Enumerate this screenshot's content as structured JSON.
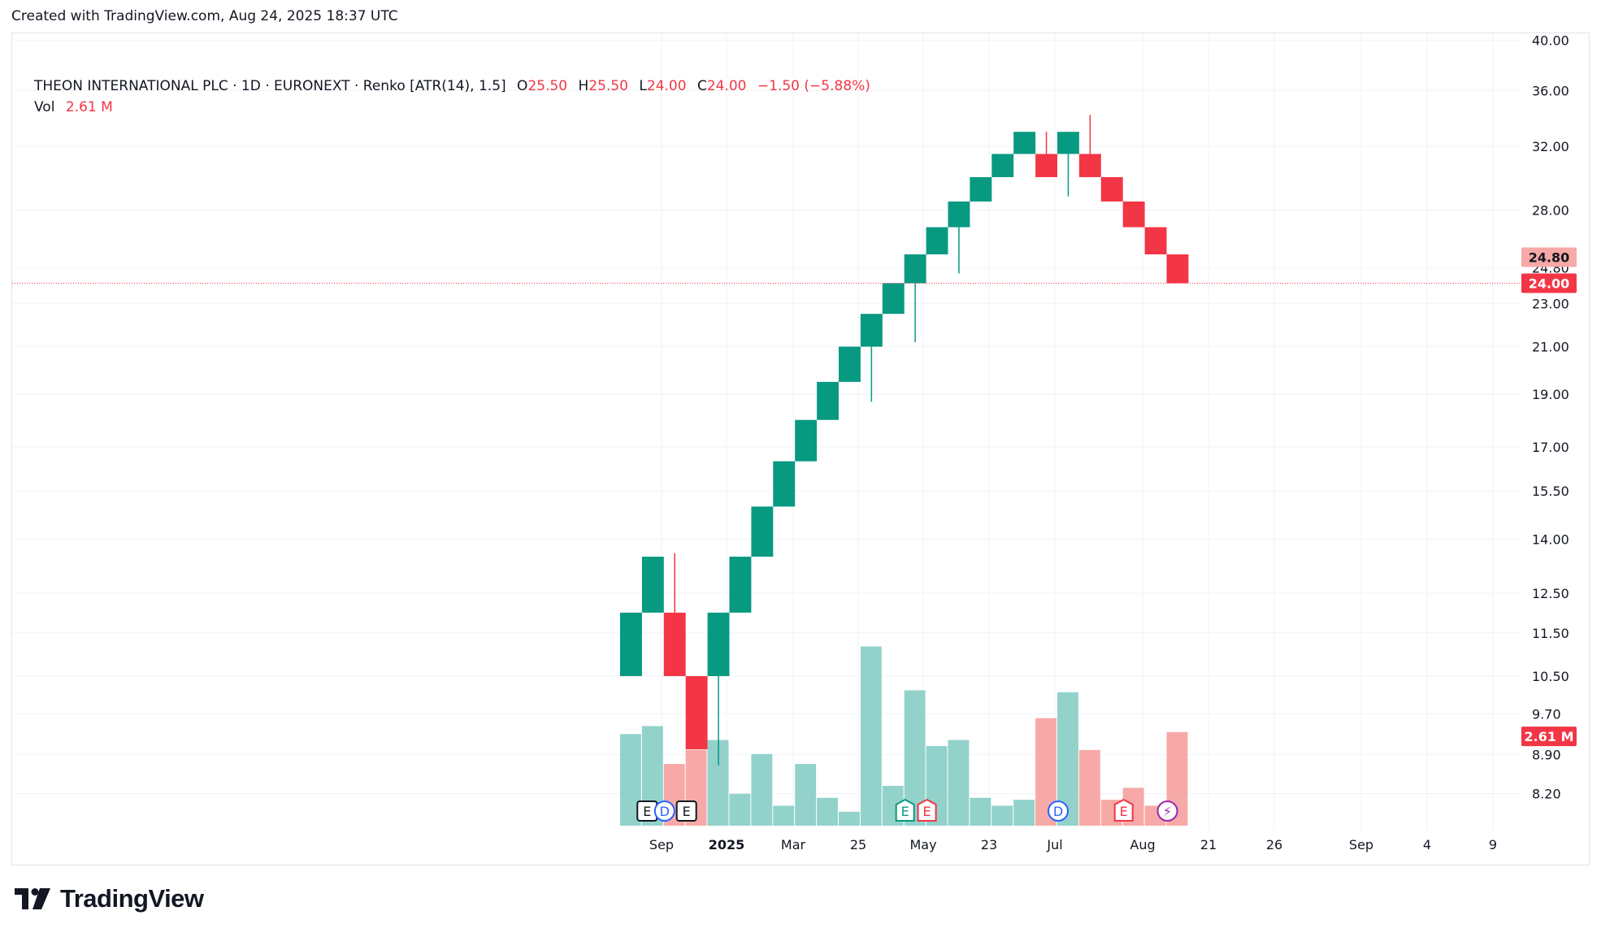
{
  "header": {
    "created_text": "Created with TradingView.com, Aug 24, 2025 18:37 UTC"
  },
  "legend": {
    "symbol_line": "THEON INTERNATIONAL PLC · 1D · EURONEXT · Renko [ATR(14), 1.5]",
    "open_label": "O",
    "open_value": "25.50",
    "high_label": "H",
    "high_value": "25.50",
    "low_label": "L",
    "low_value": "24.00",
    "close_label": "C",
    "close_value": "24.00",
    "change": "−1.50 (−5.88%)",
    "vol_label": "Vol",
    "vol_value": "2.61 M"
  },
  "footer": {
    "brand": "TradingView"
  },
  "colors": {
    "up": "#089981",
    "down": "#f23645",
    "vol_up": "#92d2cb",
    "vol_down": "#f7a9a7",
    "grid": "#f0f3fa",
    "event_E": "#131722",
    "event_D": "#2962ff",
    "event_split": "#9c27b0"
  },
  "chart_data": {
    "type": "renko",
    "price_axis": {
      "scale": "log",
      "ticks": [
        "40.00",
        "36.00",
        "32.00",
        "28.00",
        "24.80",
        "23.00",
        "21.00",
        "19.00",
        "17.00",
        "15.50",
        "14.00",
        "12.50",
        "11.50",
        "10.50",
        "9.70",
        "8.90",
        "8.20"
      ],
      "range": [
        7.6,
        40.6
      ]
    },
    "time_axis": {
      "ticks": [
        "Sep",
        "2025",
        "Mar",
        "25",
        "May",
        "23",
        "Jul",
        "Aug",
        "21",
        "26",
        "Sep",
        "4",
        "9"
      ],
      "bold": [
        "2025"
      ]
    },
    "bricks": [
      {
        "open": 10.5,
        "close": 12.0,
        "dir": "up"
      },
      {
        "open": 12.0,
        "close": 13.5,
        "dir": "up"
      },
      {
        "open": 12.0,
        "close": 10.5,
        "dir": "down",
        "wick_high": 13.6
      },
      {
        "open": 10.5,
        "close": 9.0,
        "dir": "down"
      },
      {
        "open": 10.5,
        "close": 12.0,
        "dir": "up",
        "wick_low": 8.7
      },
      {
        "open": 12.0,
        "close": 13.5,
        "dir": "up"
      },
      {
        "open": 13.5,
        "close": 15.0,
        "dir": "up"
      },
      {
        "open": 15.0,
        "close": 16.5,
        "dir": "up"
      },
      {
        "open": 16.5,
        "close": 18.0,
        "dir": "up"
      },
      {
        "open": 18.0,
        "close": 19.5,
        "dir": "up"
      },
      {
        "open": 19.5,
        "close": 21.0,
        "dir": "up"
      },
      {
        "open": 21.0,
        "close": 22.5,
        "dir": "up",
        "wick_low": 18.7
      },
      {
        "open": 22.5,
        "close": 24.0,
        "dir": "up"
      },
      {
        "open": 24.0,
        "close": 25.5,
        "dir": "up",
        "wick_low": 21.2
      },
      {
        "open": 25.5,
        "close": 27.0,
        "dir": "up"
      },
      {
        "open": 27.0,
        "close": 28.5,
        "dir": "up",
        "wick_low": 24.5
      },
      {
        "open": 28.5,
        "close": 30.0,
        "dir": "up"
      },
      {
        "open": 30.0,
        "close": 31.5,
        "dir": "up"
      },
      {
        "open": 31.5,
        "close": 33.0,
        "dir": "up"
      },
      {
        "open": 31.5,
        "close": 30.0,
        "dir": "down",
        "wick_high": 33.0
      },
      {
        "open": 31.5,
        "close": 33.0,
        "dir": "up",
        "wick_low": 28.8
      },
      {
        "open": 31.5,
        "close": 30.0,
        "dir": "down",
        "wick_high": 34.2
      },
      {
        "open": 30.0,
        "close": 28.5,
        "dir": "down"
      },
      {
        "open": 28.5,
        "close": 27.0,
        "dir": "down"
      },
      {
        "open": 27.0,
        "close": 25.5,
        "dir": "down"
      },
      {
        "open": 25.5,
        "close": 24.0,
        "dir": "down"
      }
    ],
    "volume_relative": [
      0.46,
      0.5,
      0.31,
      0.38,
      0.43,
      0.16,
      0.36,
      0.1,
      0.31,
      0.14,
      0.07,
      0.9,
      0.2,
      0.68,
      0.4,
      0.43,
      0.14,
      0.1,
      0.13,
      0.54,
      0.67,
      0.38,
      0.13,
      0.19,
      0.1,
      0.47
    ],
    "volume_dir": [
      "up",
      "up",
      "down",
      "down",
      "up",
      "up",
      "up",
      "up",
      "up",
      "up",
      "up",
      "up",
      "up",
      "up",
      "up",
      "up",
      "up",
      "up",
      "up",
      "down",
      "up",
      "down",
      "down",
      "down",
      "down",
      "down"
    ],
    "events": [
      {
        "brick": 1,
        "letter": "E",
        "kind": "earnings-neutral",
        "offset": 0.2
      },
      {
        "brick": 2,
        "letter": "D",
        "kind": "dividend"
      },
      {
        "brick": 3,
        "letter": "E",
        "kind": "earnings-neutral"
      },
      {
        "brick": 13,
        "letter": "E",
        "kind": "earnings-positive"
      },
      {
        "brick": 14,
        "letter": "E",
        "kind": "earnings-negative"
      },
      {
        "brick": 20,
        "letter": "D",
        "kind": "dividend"
      },
      {
        "brick": 23,
        "letter": "E",
        "kind": "earnings-negative"
      },
      {
        "brick": 25,
        "letter": "⚡",
        "kind": "split"
      }
    ],
    "last_price_label": "24.00",
    "prev_close_label": "24.80",
    "volume_label": "2.61 M"
  }
}
